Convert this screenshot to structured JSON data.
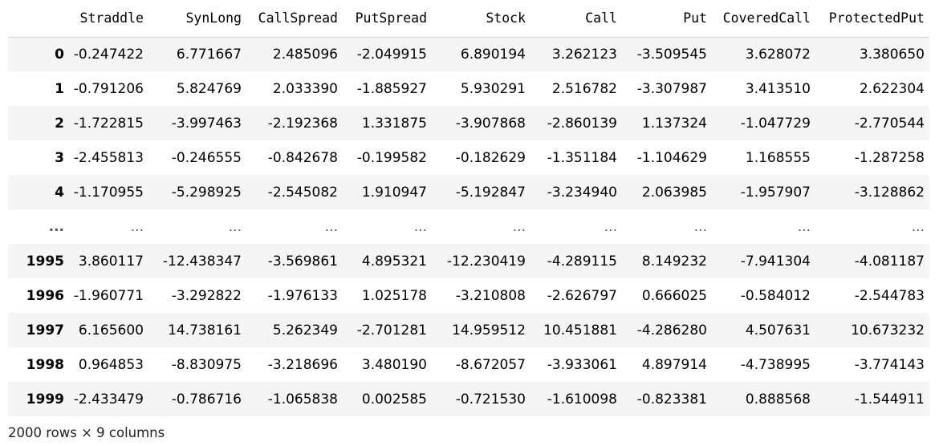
{
  "table": {
    "index_header": "",
    "columns": [
      "Straddle",
      "SynLong",
      "CallSpread",
      "PutSpread",
      "Stock",
      "Call",
      "Put",
      "CoveredCall",
      "ProtectedPut"
    ],
    "rows_top": [
      {
        "index": "0",
        "values": [
          "-0.247422",
          "6.771667",
          "2.485096",
          "-2.049915",
          "6.890194",
          "3.262123",
          "-3.509545",
          "3.628072",
          "3.380650"
        ]
      },
      {
        "index": "1",
        "values": [
          "-0.791206",
          "5.824769",
          "2.033390",
          "-1.885927",
          "5.930291",
          "2.516782",
          "-3.307987",
          "3.413510",
          "2.622304"
        ]
      },
      {
        "index": "2",
        "values": [
          "-1.722815",
          "-3.997463",
          "-2.192368",
          "1.331875",
          "-3.907868",
          "-2.860139",
          "1.137324",
          "-1.047729",
          "-2.770544"
        ]
      },
      {
        "index": "3",
        "values": [
          "-2.455813",
          "-0.246555",
          "-0.842678",
          "-0.199582",
          "-0.182629",
          "-1.351184",
          "-1.104629",
          "1.168555",
          "-1.287258"
        ]
      },
      {
        "index": "4",
        "values": [
          "-1.170955",
          "-5.298925",
          "-2.545082",
          "1.910947",
          "-5.192847",
          "-3.234940",
          "2.063985",
          "-1.957907",
          "-3.128862"
        ]
      }
    ],
    "ellipsis_row": {
      "index": "...",
      "values": [
        "...",
        "...",
        "...",
        "...",
        "...",
        "...",
        "...",
        "...",
        "..."
      ]
    },
    "rows_bottom": [
      {
        "index": "1995",
        "values": [
          "3.860117",
          "-12.438347",
          "-3.569861",
          "4.895321",
          "-12.230419",
          "-4.289115",
          "8.149232",
          "-7.941304",
          "-4.081187"
        ]
      },
      {
        "index": "1996",
        "values": [
          "-1.960771",
          "-3.292822",
          "-1.976133",
          "1.025178",
          "-3.210808",
          "-2.626797",
          "0.666025",
          "-0.584012",
          "-2.544783"
        ]
      },
      {
        "index": "1997",
        "values": [
          "6.165600",
          "14.738161",
          "5.262349",
          "-2.701281",
          "14.959512",
          "10.451881",
          "-4.286280",
          "4.507631",
          "10.673232"
        ]
      },
      {
        "index": "1998",
        "values": [
          "0.964853",
          "-8.830975",
          "-3.218696",
          "3.480190",
          "-8.672057",
          "-3.933061",
          "4.897914",
          "-4.738995",
          "-3.774143"
        ]
      },
      {
        "index": "1999",
        "values": [
          "-2.433479",
          "-0.786716",
          "-1.065838",
          "0.002585",
          "-0.721530",
          "-1.610098",
          "-0.823381",
          "0.888568",
          "-1.544911"
        ]
      }
    ]
  },
  "summary": "2000 rows × 9 columns"
}
